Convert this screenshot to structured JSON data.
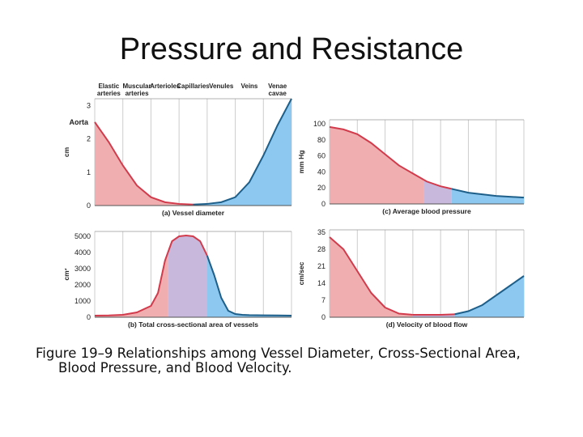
{
  "title": "Pressure and Resistance",
  "caption": {
    "line1": "Figure 19–9 Relationships among Vessel Diameter, Cross-Sectional Area,",
    "line2": "Blood Pressure, and Blood Velocity."
  },
  "colors": {
    "red": "#d23b4b",
    "red_fill": "#f0aeb0",
    "purple_fill": "#c8b8dc",
    "blue": "#1e5f8a",
    "blue_fill": "#8cc8ef",
    "grid": "#cccccc"
  },
  "chart_data": [
    {
      "type": "area",
      "label": "(a) Vessel diameter",
      "ylabel": "cm",
      "yticks": [
        "0",
        "1",
        "2",
        "3"
      ],
      "ylim": [
        0,
        3.2
      ],
      "extra_label": "Aorta",
      "extra_label_y": 2.5,
      "xlim": [
        0,
        7
      ],
      "categories": [
        "Elastic arteries",
        "Muscular arteries",
        "Arterioles",
        "Capillaries",
        "Venules",
        "Veins",
        "Venae cavae"
      ],
      "x": [
        0,
        0.5,
        1,
        1.5,
        2,
        2.5,
        3,
        3.5,
        4,
        4.5,
        5,
        5.5,
        6,
        6.5,
        7
      ],
      "y": [
        2.5,
        1.9,
        1.2,
        0.6,
        0.25,
        0.1,
        0.05,
        0.03,
        0.05,
        0.1,
        0.25,
        0.7,
        1.5,
        2.4,
        3.2
      ],
      "regions": [
        {
          "from": 0,
          "to": 3.5,
          "color": "red"
        },
        {
          "from": 3.5,
          "to": 7,
          "color": "blue"
        }
      ]
    },
    {
      "type": "area",
      "label": "(c) Average blood pressure",
      "ylabel": "mm Hg",
      "yticks": [
        "0",
        "20",
        "40",
        "60",
        "80",
        "100"
      ],
      "ylim": [
        0,
        105
      ],
      "xlim": [
        0,
        7
      ],
      "x": [
        0,
        0.5,
        1,
        1.5,
        2,
        2.5,
        3,
        3.5,
        4,
        4.5,
        5,
        5.5,
        6,
        6.5,
        7
      ],
      "y": [
        96,
        93,
        87,
        76,
        62,
        48,
        38,
        28,
        22,
        18,
        14,
        12,
        10,
        9,
        8
      ],
      "regions": [
        {
          "from": 0,
          "to": 3.4,
          "color": "red"
        },
        {
          "from": 3.4,
          "to": 4.4,
          "color": "purple"
        },
        {
          "from": 4.4,
          "to": 7,
          "color": "blue"
        }
      ]
    },
    {
      "type": "area",
      "label": "(b) Total cross-sectional area of vessels",
      "ylabel": "cm²",
      "yticks": [
        "0",
        "1000",
        "2000",
        "3000",
        "4000",
        "5000"
      ],
      "ylim": [
        0,
        5300
      ],
      "xlim": [
        0,
        7
      ],
      "x": [
        0,
        0.5,
        1,
        1.5,
        2,
        2.25,
        2.5,
        2.75,
        3,
        3.25,
        3.5,
        3.75,
        4,
        4.25,
        4.5,
        4.75,
        5,
        5.25,
        5.5,
        6,
        6.5,
        7
      ],
      "y": [
        100,
        110,
        150,
        300,
        700,
        1500,
        3500,
        4700,
        5000,
        5050,
        5000,
        4700,
        3800,
        2600,
        1200,
        400,
        200,
        150,
        130,
        120,
        110,
        100
      ],
      "regions": [
        {
          "from": 0,
          "to": 2.6,
          "color": "red"
        },
        {
          "from": 2.6,
          "to": 4.0,
          "color": "purple"
        },
        {
          "from": 4.0,
          "to": 7,
          "color": "blue"
        }
      ]
    },
    {
      "type": "area",
      "label": "(d) Velocity of blood flow",
      "ylabel": "cm/sec",
      "yticks": [
        "0",
        "7",
        "14",
        "21",
        "28",
        "35"
      ],
      "ylim": [
        0,
        36
      ],
      "xlim": [
        0,
        7
      ],
      "x": [
        0,
        0.5,
        1,
        1.5,
        2,
        2.5,
        3,
        3.5,
        4,
        4.5,
        5,
        5.5,
        6,
        6.5,
        7
      ],
      "y": [
        33,
        28,
        19,
        10,
        4,
        1.5,
        1,
        1,
        1,
        1.2,
        2.5,
        5,
        9,
        13,
        17
      ],
      "regions": [
        {
          "from": 0,
          "to": 3.0,
          "color": "red"
        },
        {
          "from": 3.0,
          "to": 4.5,
          "color": "purple"
        },
        {
          "from": 4.5,
          "to": 7,
          "color": "blue"
        }
      ]
    }
  ]
}
